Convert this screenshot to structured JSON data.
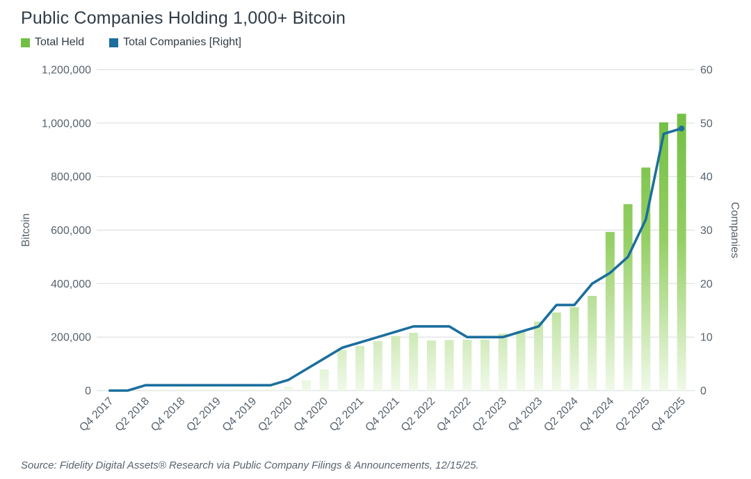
{
  "title": "Public Companies Holding 1,000+ Bitcoin",
  "legend": [
    {
      "label": "Total Held",
      "color": "#72bf44"
    },
    {
      "label": "Total Companies [Right]",
      "color": "#1b6e9d"
    }
  ],
  "source": "Source: Fidelity Digital Assets® Research via Public Company Filings & Announcements, 12/15/25.",
  "chart_data": {
    "type": "bar+line combo",
    "categories": [
      "Q4 2017",
      "Q1 2018",
      "Q2 2018",
      "Q3 2018",
      "Q4 2018",
      "Q1 2019",
      "Q2 2019",
      "Q3 2019",
      "Q4 2019",
      "Q1 2020",
      "Q2 2020",
      "Q3 2020",
      "Q4 2020",
      "Q1 2021",
      "Q2 2021",
      "Q3 2021",
      "Q4 2021",
      "Q1 2022",
      "Q2 2022",
      "Q3 2022",
      "Q4 2022",
      "Q1 2023",
      "Q2 2023",
      "Q3 2023",
      "Q4 2023",
      "Q1 2024",
      "Q2 2024",
      "Q3 2024",
      "Q4 2024",
      "Q1 2025",
      "Q2 2025",
      "Q3 2025",
      "Q4 2025"
    ],
    "x_tick_labels": [
      "Q4 2017",
      "Q2 2018",
      "Q4 2018",
      "Q2 2019",
      "Q4 2019",
      "Q2 2020",
      "Q4 2020",
      "Q2 2021",
      "Q4 2021",
      "Q2 2022",
      "Q4 2022",
      "Q2 2023",
      "Q4 2023",
      "Q2 2024",
      "Q4 2024",
      "Q2 2025",
      "Q4 2025"
    ],
    "series": [
      {
        "name": "Total Held",
        "type": "bar",
        "axis": "left",
        "color_top": "#72bf44",
        "color_bottom": "#f0f9e8",
        "values": [
          0,
          0,
          5000,
          5000,
          5000,
          5000,
          5000,
          5000,
          5000,
          6000,
          15000,
          38000,
          79000,
          151000,
          167000,
          185000,
          204000,
          216000,
          187000,
          189000,
          190000,
          191000,
          213000,
          224000,
          258000,
          292000,
          312000,
          354000,
          593000,
          697000,
          834000,
          1003000,
          1035000
        ]
      },
      {
        "name": "Total Companies [Right]",
        "type": "line",
        "axis": "right",
        "color": "#1b6e9d",
        "values": [
          0,
          0,
          1,
          1,
          1,
          1,
          1,
          1,
          1,
          1,
          2,
          4,
          6,
          8,
          9,
          10,
          11,
          12,
          12,
          12,
          10,
          10,
          10,
          11,
          12,
          16,
          16,
          20,
          22,
          25,
          32,
          48,
          49
        ]
      }
    ],
    "left_axis": {
      "label": "Bitcoin",
      "min": 0,
      "max": 1200000,
      "ticks": [
        {
          "value": 0,
          "label": "0"
        },
        {
          "value": 200000,
          "label": "200,000"
        },
        {
          "value": 400000,
          "label": "400,000"
        },
        {
          "value": 600000,
          "label": "600,000"
        },
        {
          "value": 800000,
          "label": "800,000"
        },
        {
          "value": 1000000,
          "label": "1,000,000"
        },
        {
          "value": 1200000,
          "label": "1,200,000"
        }
      ]
    },
    "right_axis": {
      "label": "Companies",
      "min": 0,
      "max": 60,
      "ticks": [
        {
          "value": 0,
          "label": "0"
        },
        {
          "value": 10,
          "label": "10"
        },
        {
          "value": 20,
          "label": "20"
        },
        {
          "value": 30,
          "label": "30"
        },
        {
          "value": 40,
          "label": "40"
        },
        {
          "value": 50,
          "label": "50"
        },
        {
          "value": 60,
          "label": "60"
        }
      ]
    },
    "grid": true,
    "legend_position": "top-left",
    "text_color": "#57626d",
    "grid_color": "#dcdfe1"
  }
}
